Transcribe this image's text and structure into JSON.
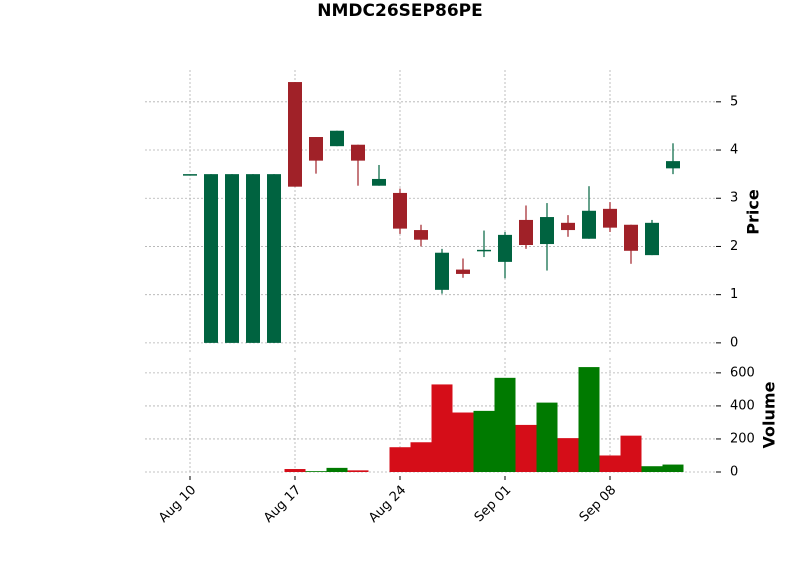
{
  "chart_data": {
    "type": "candlestick",
    "title": "NMDC26SEP86PE",
    "categories": [
      "Aug 10",
      null,
      null,
      null,
      null,
      "Aug 17",
      null,
      null,
      null,
      null,
      "Aug 24",
      null,
      null,
      null,
      null,
      "Sep 01",
      null,
      null,
      null,
      null,
      "Sep 08",
      null,
      null,
      null
    ],
    "open": [
      3.5,
      0,
      0,
      0,
      0,
      5.41,
      4.27,
      4.08,
      4.11,
      3.26,
      3.11,
      2.34,
      1.1,
      1.52,
      1.9,
      1.68,
      2.55,
      2.05,
      2.49,
      2.16,
      2.78,
      2.45,
      1.82,
      3.62
    ],
    "high": [
      3.5,
      3.5,
      3.5,
      3.5,
      3.5,
      5.41,
      4.27,
      4.4,
      4.11,
      3.69,
      3.2,
      2.45,
      1.95,
      1.75,
      2.33,
      2.3,
      2.85,
      2.9,
      2.65,
      3.25,
      2.92,
      2.45,
      2.55,
      4.14
    ],
    "low": [
      3.5,
      0,
      0,
      0,
      0,
      3.24,
      3.51,
      4.08,
      3.26,
      3.26,
      2.26,
      2.0,
      1.02,
      1.35,
      1.78,
      1.34,
      1.95,
      1.5,
      2.2,
      2.16,
      2.3,
      1.64,
      1.82,
      3.5
    ],
    "close": [
      3.5,
      3.5,
      3.5,
      3.5,
      3.5,
      3.24,
      3.78,
      4.4,
      3.78,
      3.4,
      2.37,
      2.14,
      1.87,
      1.43,
      1.93,
      2.24,
      2.03,
      2.61,
      2.34,
      2.74,
      2.39,
      1.91,
      2.49,
      3.77
    ],
    "ylabel": "Price",
    "ylim": [
      -0.21,
      5.66
    ],
    "yticks": [
      0,
      1,
      2,
      3,
      4,
      5
    ],
    "up_color": "#006340",
    "down_color": "#a02128",
    "grid": true,
    "volume": {
      "values": [
        0,
        0,
        0,
        0,
        0,
        18,
        5,
        25,
        10,
        0,
        150,
        180,
        530,
        360,
        370,
        570,
        285,
        420,
        205,
        635,
        100,
        220,
        35,
        45
      ],
      "ylabel": "Volume",
      "ylim": [
        0,
        690
      ],
      "yticks": [
        0,
        200,
        400,
        600
      ],
      "up_color": "#007a00",
      "down_color": "#d50d18"
    }
  }
}
